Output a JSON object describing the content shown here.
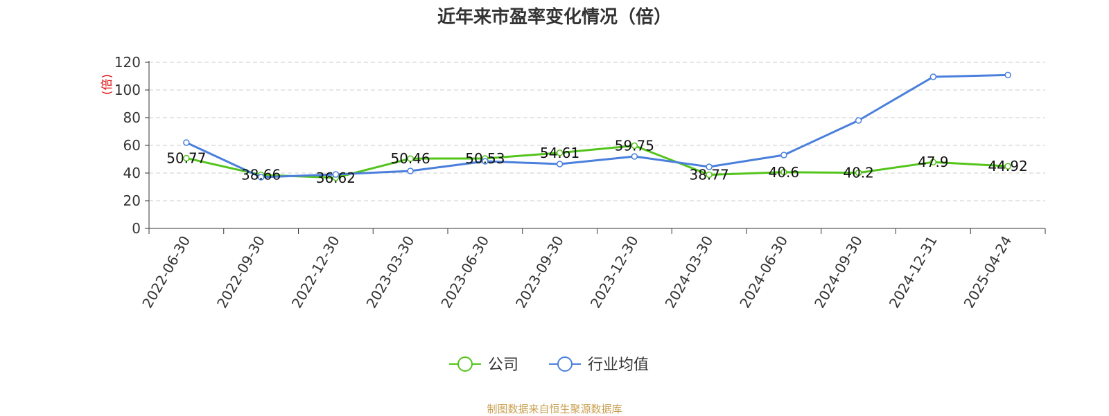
{
  "chart_data": {
    "type": "line",
    "title": "近年来市盈率变化情况（倍）",
    "ylabel": "(倍)",
    "xlabel": "",
    "ylim": [
      0,
      120
    ],
    "yticks": [
      0,
      20,
      40,
      60,
      80,
      100,
      120
    ],
    "grid": true,
    "legend_position": "bottom-center",
    "categories": [
      "2022-06-30",
      "2022-09-30",
      "2022-12-30",
      "2023-03-30",
      "2023-06-30",
      "2023-09-30",
      "2023-12-30",
      "2024-03-30",
      "2024-06-30",
      "2024-09-30",
      "2024-12-31",
      "2025-04-24"
    ],
    "series": [
      {
        "name": "公司",
        "color": "#52c41a",
        "values": [
          50.77,
          38.66,
          36.62,
          50.46,
          50.53,
          54.61,
          59.75,
          38.77,
          40.6,
          40.2,
          47.9,
          44.92
        ],
        "show_labels": true
      },
      {
        "name": "行业均值",
        "color": "#4a7fdc",
        "values": [
          62.0,
          37.0,
          39.0,
          41.5,
          48.5,
          46.5,
          52.0,
          44.5,
          53.0,
          78.0,
          109.5,
          110.8
        ],
        "show_labels": false
      }
    ]
  },
  "source": "制图数据来自恒生聚源数据库"
}
